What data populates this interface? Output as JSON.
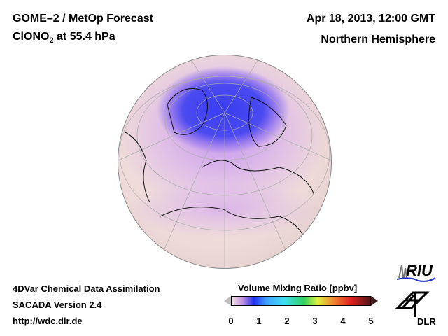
{
  "header": {
    "title_line1": "GOME–2 / MetOp Forecast",
    "title_species": "ClONO",
    "title_sub": "2",
    "title_rest": " at 55.4 hPa",
    "date": "Apr 18, 2013, 12:00 GMT",
    "region": "Northern Hemisphere"
  },
  "footer": {
    "line1": "4DVar Chemical Data Assimilation",
    "line2": "SACADA Version 2.4",
    "line3": "http://wdc.dlr.de"
  },
  "colorbar": {
    "label": "Volume Mixing Ratio [ppbv]",
    "ticks": [
      "0",
      "1",
      "2",
      "3",
      "4",
      "5"
    ],
    "min": 0,
    "max": 5
  },
  "logos": {
    "riu": "RIU",
    "dlr": "DLR"
  }
}
